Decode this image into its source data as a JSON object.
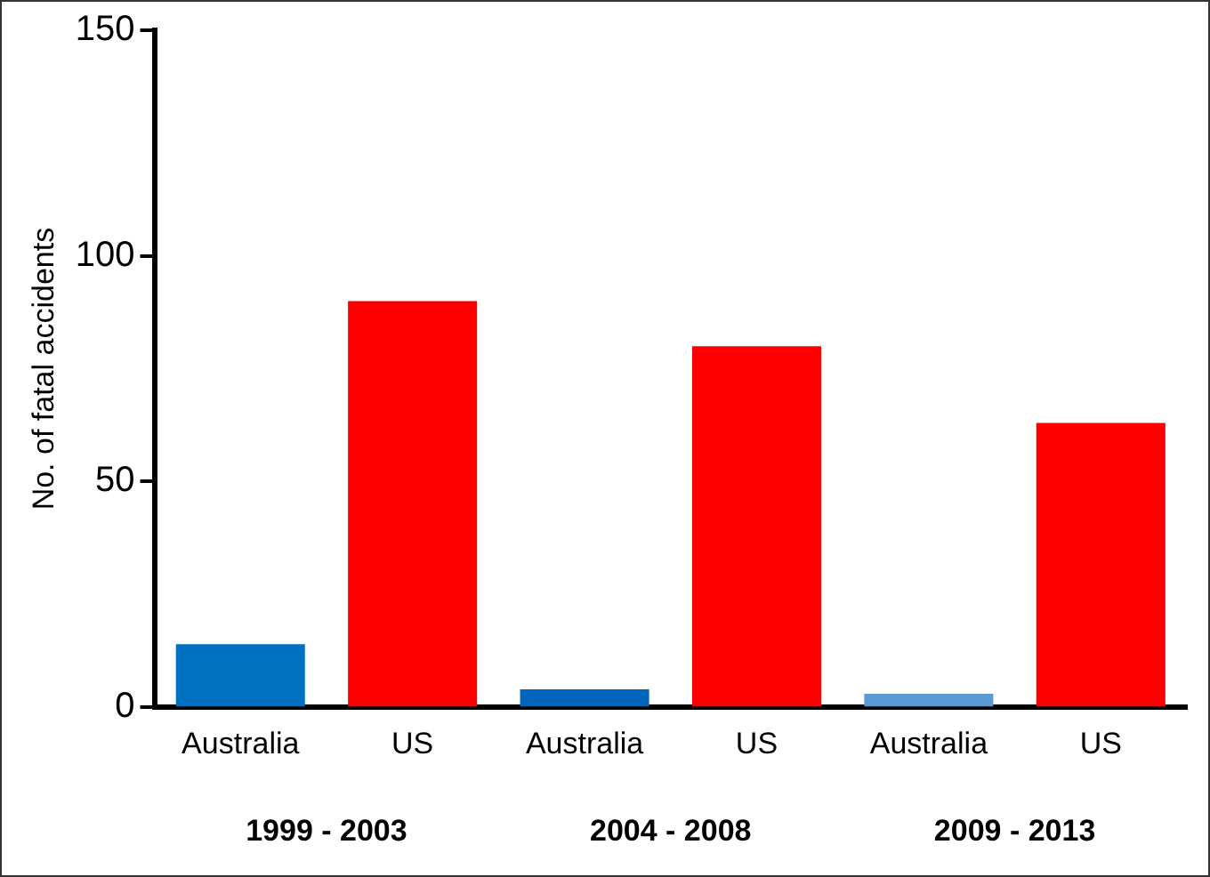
{
  "chart_data": {
    "type": "bar",
    "ylabel": "No. of fatal accidents",
    "categories": [
      "Australia",
      "US",
      "Australia",
      "US",
      "Australia",
      "US"
    ],
    "values": [
      14,
      90,
      4,
      80,
      3,
      63
    ],
    "colors": [
      "#0070c0",
      "#ff0000",
      "#0065bd",
      "#ff0000",
      "#5b9bd5",
      "#ff0000"
    ],
    "ylim": [
      0,
      150
    ],
    "yticks": [
      0,
      50,
      100,
      150
    ],
    "grid": false,
    "legend": false,
    "annotations": [
      "1999 - 2003",
      "2004 - 2008",
      "2009 - 2013"
    ]
  }
}
